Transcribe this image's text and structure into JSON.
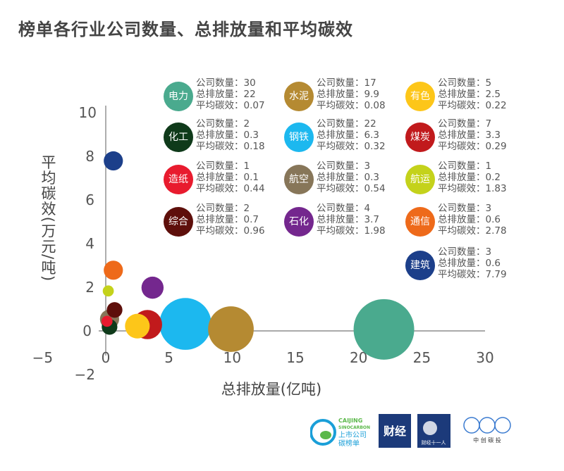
{
  "title": "榜单各行业公司数量、总排放量和平均碳效",
  "chart_data": {
    "type": "scatter",
    "subtype": "bubble",
    "title": "榜单各行业公司数量、总排放量和平均碳效",
    "xlabel": "总排放量(亿吨)",
    "ylabel": "平均碳效(万元/吨)",
    "xlim": [
      -5,
      30
    ],
    "ylim": [
      -2,
      10
    ],
    "xticks": [
      "−5",
      "0",
      "5",
      "10",
      "15",
      "20",
      "25",
      "30"
    ],
    "yticks": [
      "−2",
      "0",
      "2",
      "4",
      "6",
      "8",
      "10"
    ],
    "grid": false,
    "legend_placement": "top-right",
    "field_labels": {
      "count": "公司数量：",
      "total": "总排放量：",
      "avg": "平均碳效："
    },
    "series": [
      {
        "name": "电力",
        "count": 30,
        "total": 22,
        "avg": 0.07,
        "color": "#4aaa8e"
      },
      {
        "name": "水泥",
        "count": 17,
        "total": 9.9,
        "avg": 0.08,
        "color": "#b58a32"
      },
      {
        "name": "有色",
        "count": 5,
        "total": 2.5,
        "avg": 0.22,
        "color": "#fdc619"
      },
      {
        "name": "化工",
        "count": 2,
        "total": 0.3,
        "avg": 0.18,
        "color": "#0f3a1a"
      },
      {
        "name": "钢铁",
        "count": 22,
        "total": 6.3,
        "avg": 0.32,
        "color": "#1cb8ef"
      },
      {
        "name": "煤炭",
        "count": 7,
        "total": 3.3,
        "avg": 0.29,
        "color": "#c11a1c"
      },
      {
        "name": "造纸",
        "count": 1,
        "total": 0.1,
        "avg": 0.44,
        "color": "#e81b2e"
      },
      {
        "name": "航空",
        "count": 3,
        "total": 0.3,
        "avg": 0.54,
        "color": "#877659"
      },
      {
        "name": "航运",
        "count": 1,
        "total": 0.2,
        "avg": 1.83,
        "color": "#c4d21b"
      },
      {
        "name": "综合",
        "count": 2,
        "total": 0.7,
        "avg": 0.96,
        "color": "#5e0f0b"
      },
      {
        "name": "石化",
        "count": 4,
        "total": 3.7,
        "avg": 1.98,
        "color": "#74278e"
      },
      {
        "name": "通信",
        "count": 3,
        "total": 0.6,
        "avg": 2.78,
        "color": "#ee6a1a"
      },
      {
        "name": "建筑",
        "count": 3,
        "total": 0.6,
        "avg": 7.79,
        "color": "#1c3f8a"
      }
    ]
  },
  "logos": [
    {
      "name": "CAIJING SINOCARBON 上市公司碳榜单"
    },
    {
      "name": "财经"
    },
    {
      "name": "财经十一人"
    },
    {
      "name": "中创碳投"
    }
  ]
}
